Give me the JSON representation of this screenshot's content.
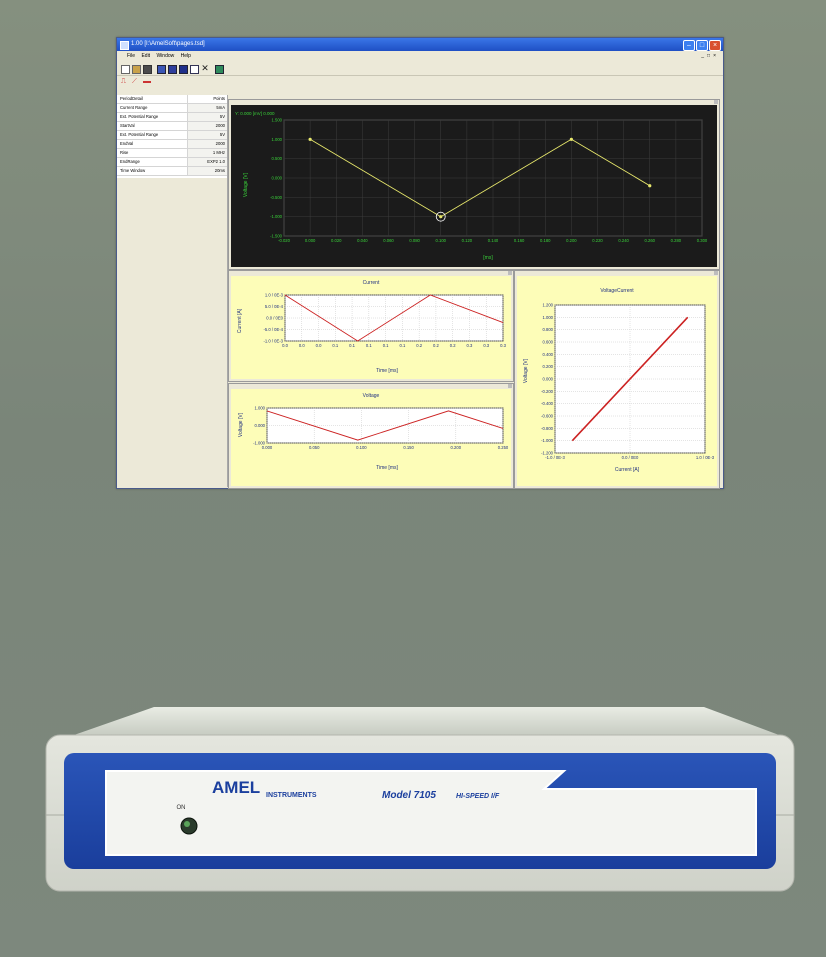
{
  "window": {
    "title": "1.00  [I:\\AmelSoft\\pages.tsd]",
    "menu": [
      "File",
      "Edit",
      "Window",
      "Help"
    ]
  },
  "params": [
    {
      "label": "PeriodDetail",
      "value": "Points"
    },
    {
      "label": "Current Range",
      "value": "5mA"
    },
    {
      "label": "Ext. Potential Range",
      "value": "5V"
    },
    {
      "label": "StartVal",
      "value": "2000"
    },
    {
      "label": "Ext. Potential Range",
      "value": "5V"
    },
    {
      "label": "EndVal",
      "value": "2000"
    },
    {
      "label": "Rise",
      "value": "1 MHz"
    },
    {
      "label": "EndRange",
      "value": "EXP2 1.0"
    },
    {
      "label": "Time Window",
      "value": "20ms"
    }
  ],
  "main_plot": {
    "header": "Y: 0.000 [mV]  0.000",
    "ylabel": "Voltage [V]",
    "xunit": "[ms]",
    "yticks": [
      "1.500",
      "1.000",
      "0.500",
      "0.000",
      "-0.500",
      "-1.000",
      "-1.500"
    ],
    "xticks": [
      "-0.020",
      "0.000",
      "0.020",
      "0.040",
      "0.060",
      "0.080",
      "0.100",
      "0.120",
      "0.140",
      "0.160",
      "0.180",
      "0.200",
      "0.220",
      "0.240",
      "0.260",
      "0.280",
      "0.300"
    ],
    "colors": {
      "background": "#1b1b1b",
      "grid": "#3c3c3c",
      "axis_text": "#39d039",
      "trace": "#e8e86c"
    }
  },
  "current_plot": {
    "title": "Current",
    "ylabel": "Current [A]",
    "xlabel": "Time [ms]",
    "yticks": [
      "1.0 / 0E-3",
      "5.0 / 0E-4",
      "0.0 / 0E0",
      "-5.0 / 0E-4",
      "-1.0 / 0E-3"
    ],
    "xticks": [
      "0.0",
      "0.0",
      "0.0",
      "0.1",
      "0.1",
      "0.1",
      "0.1",
      "0.1",
      "0.2",
      "0.2",
      "0.2",
      "0.3",
      "0.3",
      "0.3"
    ]
  },
  "voltage_plot": {
    "title": "Voltage",
    "ylabel": "Voltage [V]",
    "xlabel": "Time [ms]",
    "yticks": [
      "1.000",
      "0.000",
      "-1.000"
    ],
    "xticks": [
      "0.000",
      "0.050",
      "0.100",
      "0.150",
      "0.200",
      "0.250"
    ]
  },
  "vc_plot": {
    "title": "VoltageCurrent",
    "ylabel": "Voltage [V]",
    "xlabel": "Current [A]",
    "yticks": [
      "1.200",
      "1.000",
      "0.800",
      "0.600",
      "0.400",
      "0.200",
      "0.000",
      "-0.200",
      "-0.400",
      "-0.600",
      "-0.800",
      "-1.000",
      "-1.200"
    ],
    "xticks": [
      "-1.0 / 0E-3",
      "0.0 / 0E0",
      "1.0 / 0E-3"
    ]
  },
  "device": {
    "brand": "AMEL",
    "brand_sub": "INSTRUMENTS",
    "model": "Model 7105",
    "model_sub": "HI-SPEED I/F",
    "power_label": "ON"
  },
  "chart_data": [
    {
      "type": "line",
      "title": "",
      "xlabel": "[ms]",
      "ylabel": "Voltage [V]",
      "x": [
        0.0,
        0.1,
        0.2,
        0.26
      ],
      "series": [
        {
          "values": [
            1.0,
            -1.0,
            1.0,
            -0.2
          ]
        }
      ],
      "xlim": [
        -0.02,
        0.3
      ],
      "ylim": [
        -1.5,
        1.5
      ],
      "grid": true
    },
    {
      "type": "line",
      "title": "Current",
      "xlabel": "Time [ms]",
      "ylabel": "Current [A]",
      "x": [
        0.0,
        0.1,
        0.2,
        0.3
      ],
      "series": [
        {
          "values": [
            0.001,
            -0.001,
            0.001,
            -0.0002
          ]
        }
      ],
      "grid": true
    },
    {
      "type": "line",
      "title": "Voltage",
      "xlabel": "Time [ms]",
      "ylabel": "Voltage [V]",
      "x": [
        0.0,
        0.1,
        0.2,
        0.26
      ],
      "series": [
        {
          "values": [
            1.0,
            -1.0,
            1.0,
            -0.2
          ]
        }
      ],
      "grid": true
    },
    {
      "type": "line",
      "title": "VoltageCurrent",
      "xlabel": "Current [A]",
      "ylabel": "Voltage [V]",
      "x": [
        -0.001,
        0.001
      ],
      "series": [
        {
          "values": [
            -1.0,
            1.0
          ]
        }
      ],
      "grid": true
    }
  ]
}
